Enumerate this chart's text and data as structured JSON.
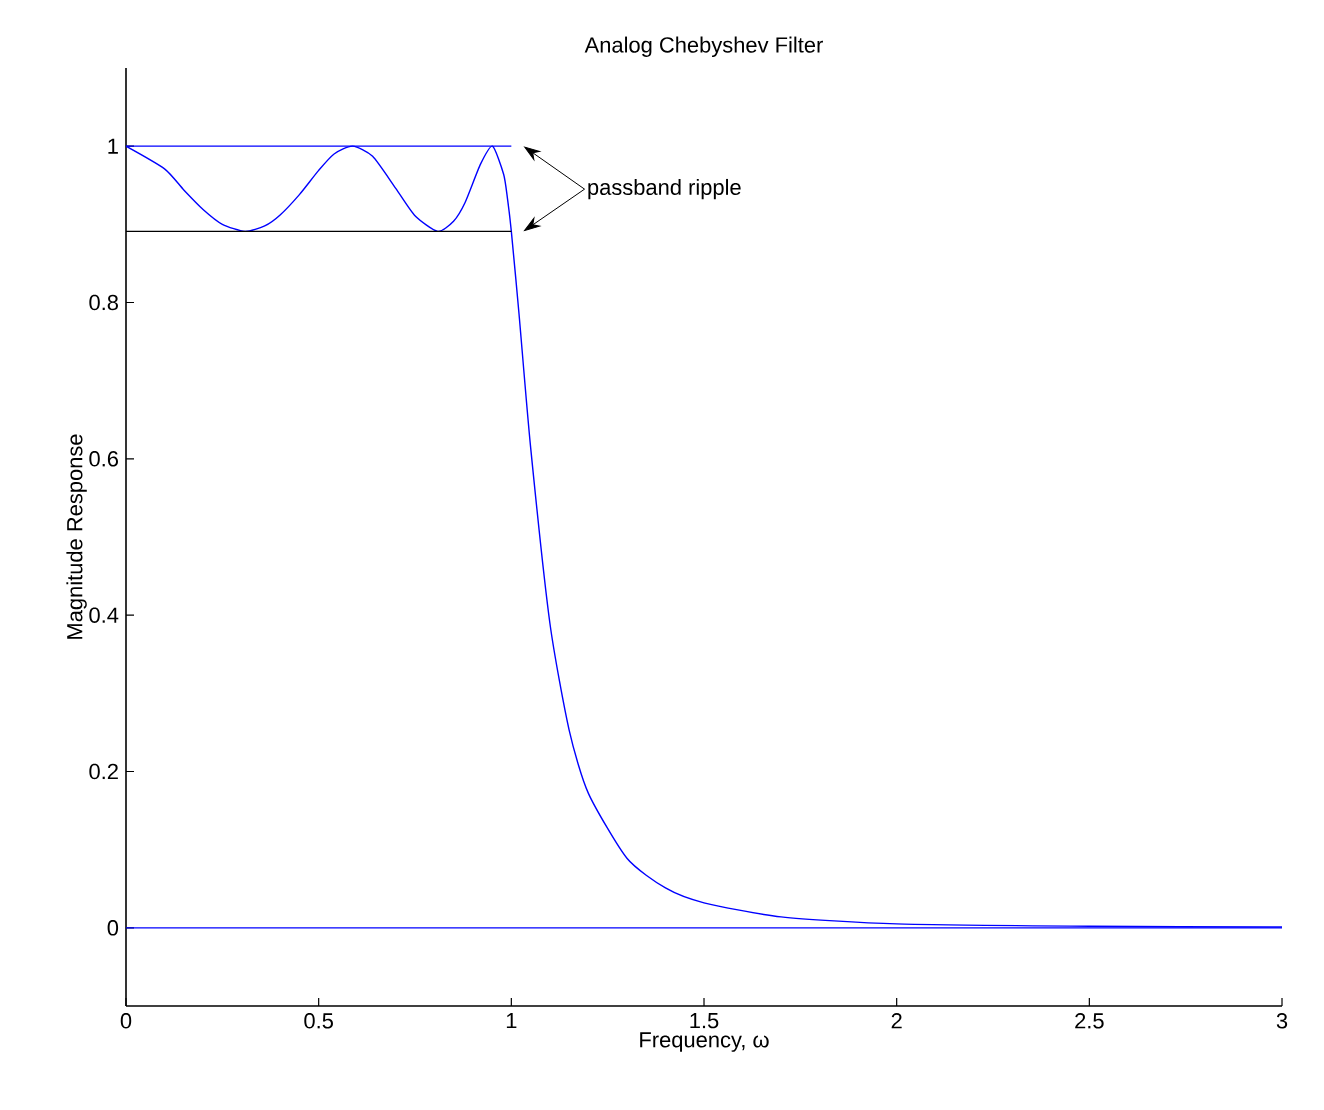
{
  "chart_data": {
    "type": "line",
    "title": "Analog Chebyshev Filter",
    "xlabel": "Frequency, ω",
    "ylabel": "Magnitude Response",
    "series": [
      {
        "color": "#0000ff",
        "x": [
          0,
          0.1,
          0.15,
          0.2,
          0.25,
          0.309,
          0.36,
          0.4,
          0.45,
          0.5,
          0.54,
          0.588,
          0.64,
          0.7,
          0.75,
          0.809,
          0.85,
          0.88,
          0.92,
          0.951,
          0.98,
          0.99,
          1.0,
          1.02,
          1.05,
          1.1,
          1.15,
          1.2,
          1.3,
          1.4,
          1.5,
          1.7,
          2.0,
          2.5,
          3.0
        ],
        "values": [
          1,
          0.971,
          0.944,
          0.919,
          0.9,
          0.891,
          0.898,
          0.912,
          0.938,
          0.969,
          0.99,
          1,
          0.987,
          0.946,
          0.911,
          0.891,
          0.904,
          0.928,
          0.977,
          1,
          0.964,
          0.933,
          0.891,
          0.785,
          0.615,
          0.39,
          0.253,
          0.172,
          0.089,
          0.051,
          0.032,
          0.014,
          0.005,
          0.002,
          0.001
        ]
      },
      {
        "color": "#0000ff",
        "x": [
          0,
          1
        ],
        "values": [
          1,
          1
        ]
      },
      {
        "color": "#000000",
        "x": [
          0,
          1
        ],
        "values": [
          0.891,
          0.891
        ]
      }
    ],
    "ref_lines": [
      {
        "axis": "y",
        "value": 0,
        "color": "#0000ff"
      }
    ],
    "annotations": [
      "passband ripple"
    ],
    "xlim": [
      0,
      3
    ],
    "ylim": [
      -0.1,
      1.1
    ],
    "xticks": [
      0,
      0.5,
      1,
      1.5,
      2,
      2.5,
      3
    ],
    "yticks": [
      0,
      0.2,
      0.4,
      0.6,
      0.8,
      1
    ],
    "grid": false,
    "marker": "none",
    "line_style": "solid"
  }
}
